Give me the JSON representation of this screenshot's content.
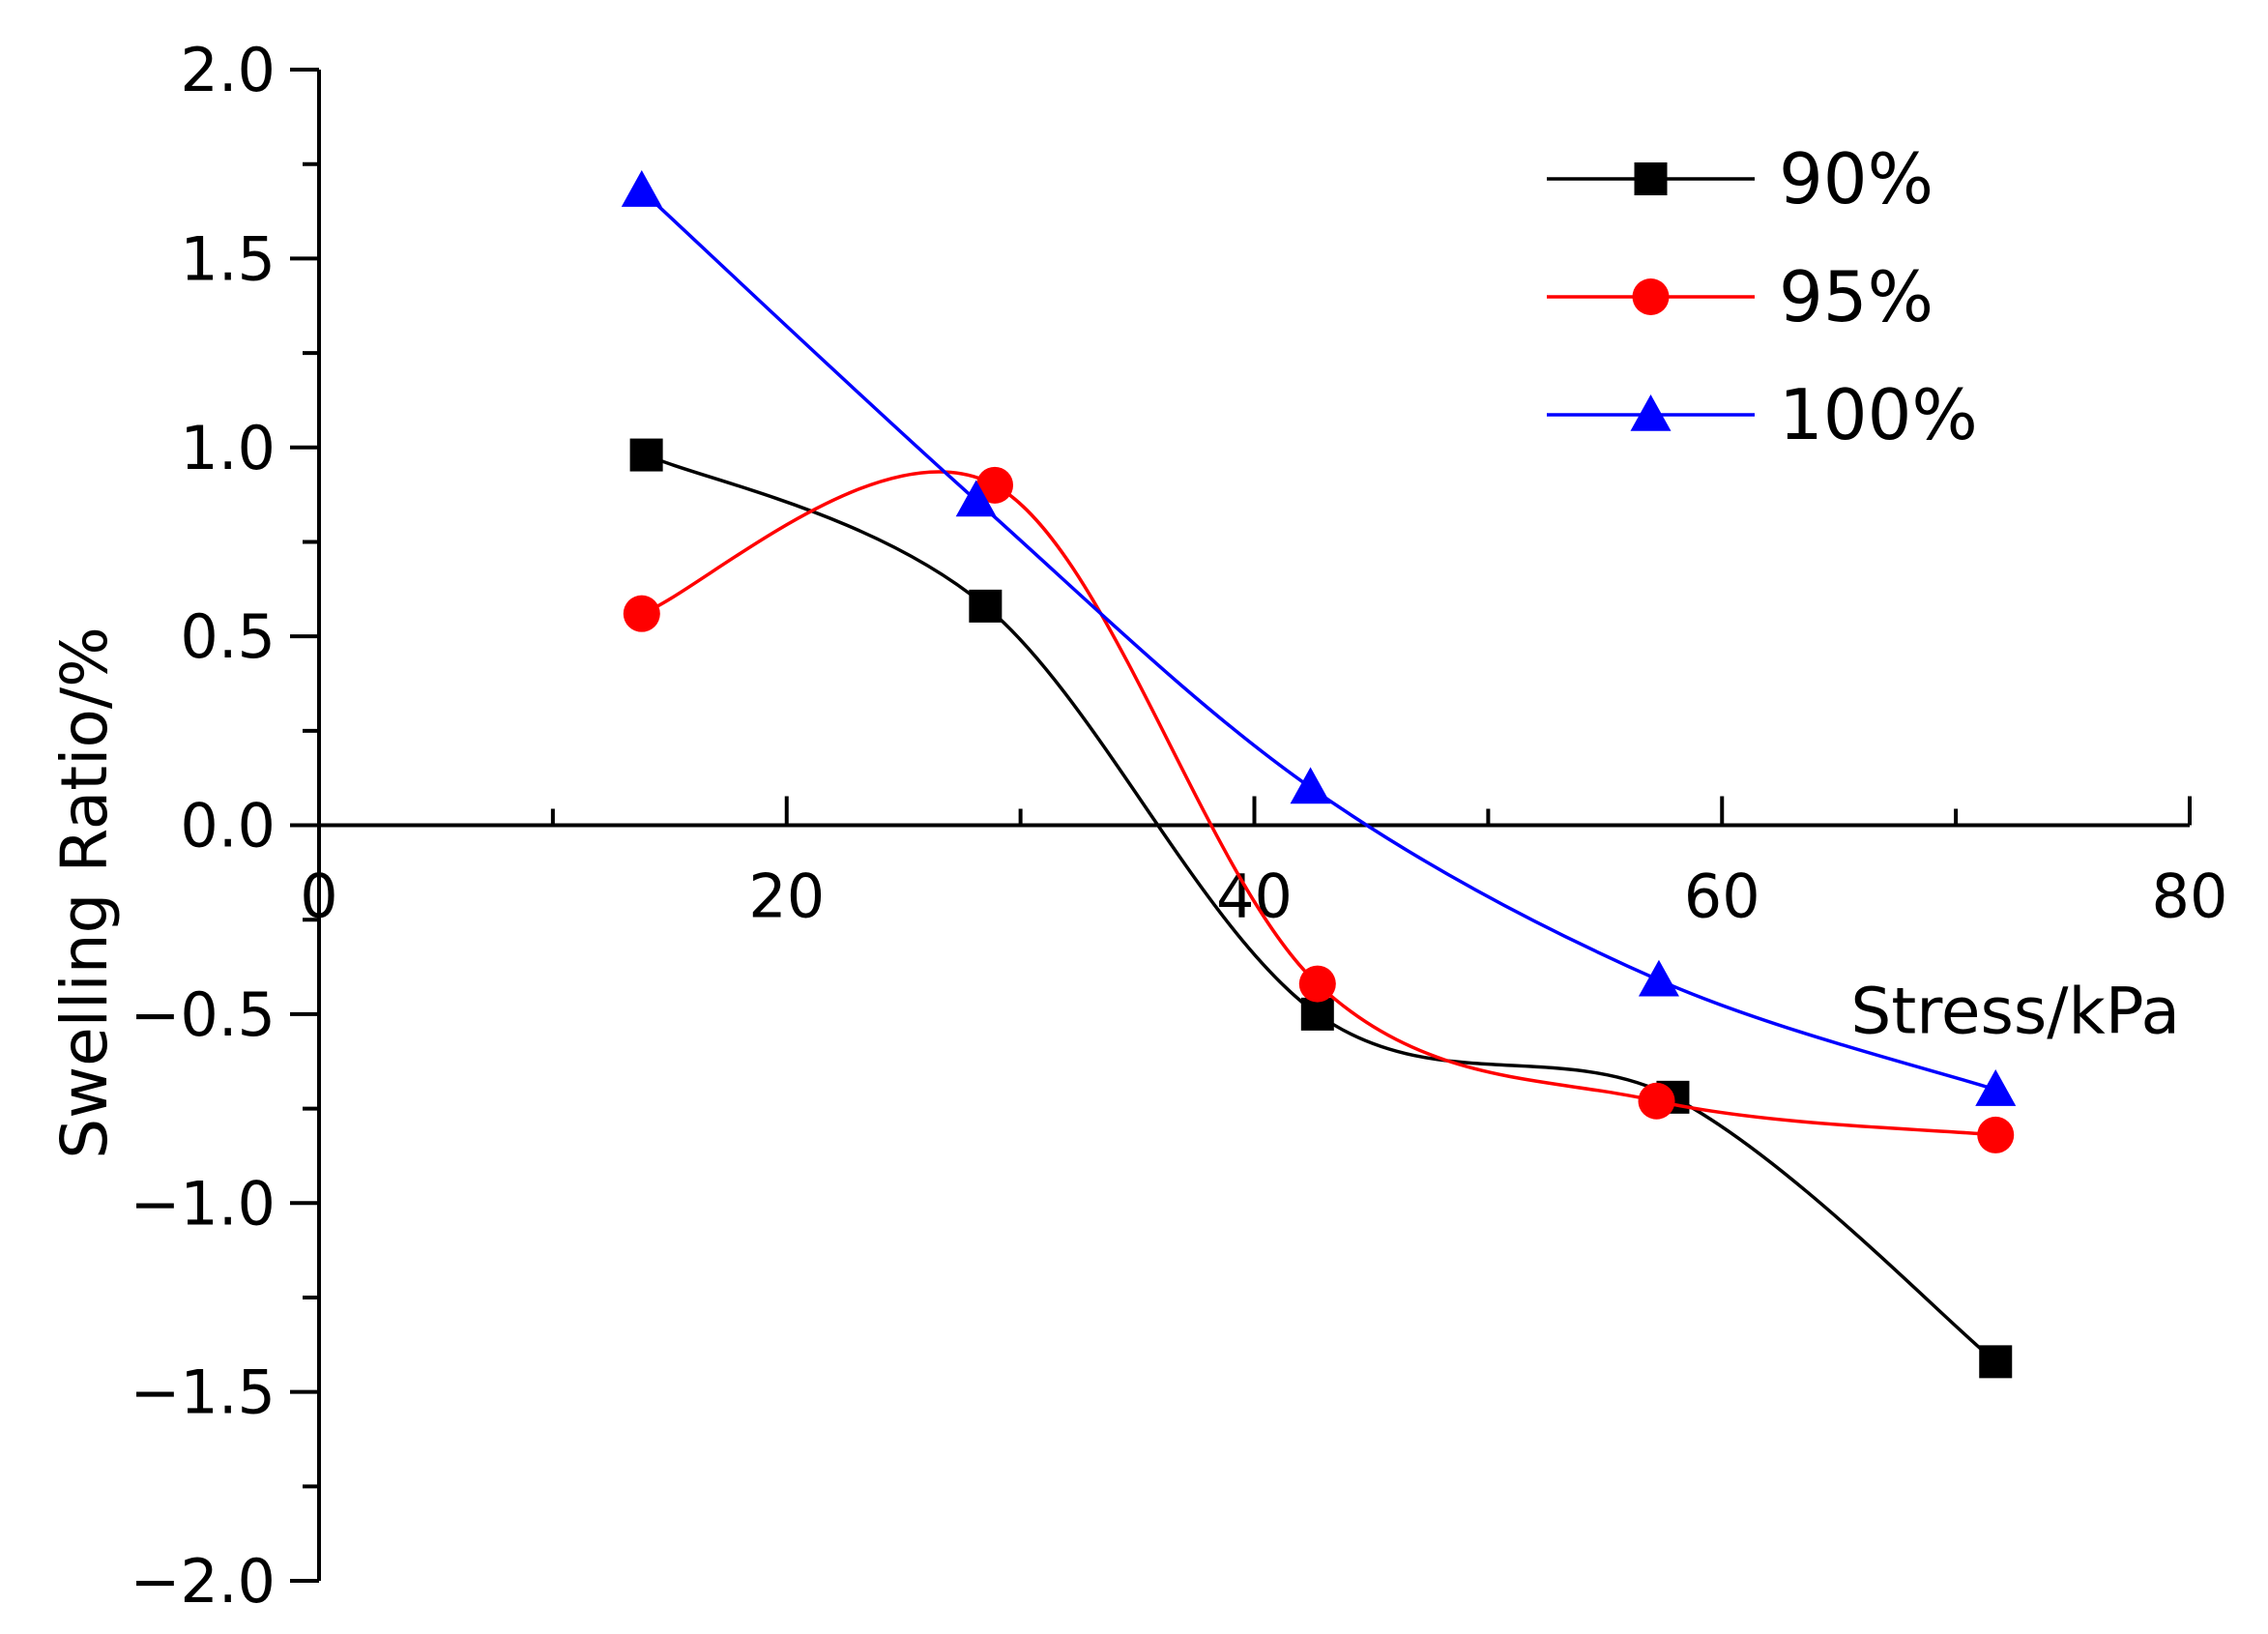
{
  "chart_data": {
    "type": "line",
    "title": "",
    "xlabel": "Stress/kPa",
    "ylabel": "Swelling Ratio/%",
    "xlim": [
      0,
      80
    ],
    "ylim": [
      -2.0,
      2.0
    ],
    "x_ticks": [
      0,
      20,
      40,
      60,
      80
    ],
    "x_tick_labels": [
      "0",
      "20",
      "40",
      "60",
      "80"
    ],
    "x_minor_step": 10,
    "y_ticks": [
      2.0,
      1.5,
      1.0,
      0.5,
      0.0,
      -0.5,
      -1.0,
      -1.5,
      -2.0
    ],
    "y_tick_labels": [
      "2.0",
      "1.5",
      "1.0",
      "0.5",
      "0.0",
      "−0.5",
      "−1.0",
      "−1.5",
      "−2.0"
    ],
    "y_minor_step": 0.25,
    "grid": false,
    "legend_position": "top-right",
    "smooth": true,
    "series": [
      {
        "name": "90%",
        "color": "#000000",
        "marker": "square",
        "x": [
          14,
          28.5,
          42.7,
          57.9,
          71.7
        ],
        "y": [
          0.98,
          0.58,
          -0.5,
          -0.72,
          -1.42
        ]
      },
      {
        "name": "95%",
        "color": "#ff0000",
        "marker": "circle",
        "x": [
          13.8,
          28.9,
          42.7,
          57.2,
          71.7
        ],
        "y": [
          0.56,
          0.9,
          -0.42,
          -0.73,
          -0.82
        ]
      },
      {
        "name": "100%",
        "color": "#0000ff",
        "marker": "triangle",
        "x": [
          13.8,
          28.1,
          42.4,
          57.3,
          71.7
        ],
        "y": [
          1.68,
          0.86,
          0.1,
          -0.41,
          -0.7
        ]
      }
    ]
  }
}
